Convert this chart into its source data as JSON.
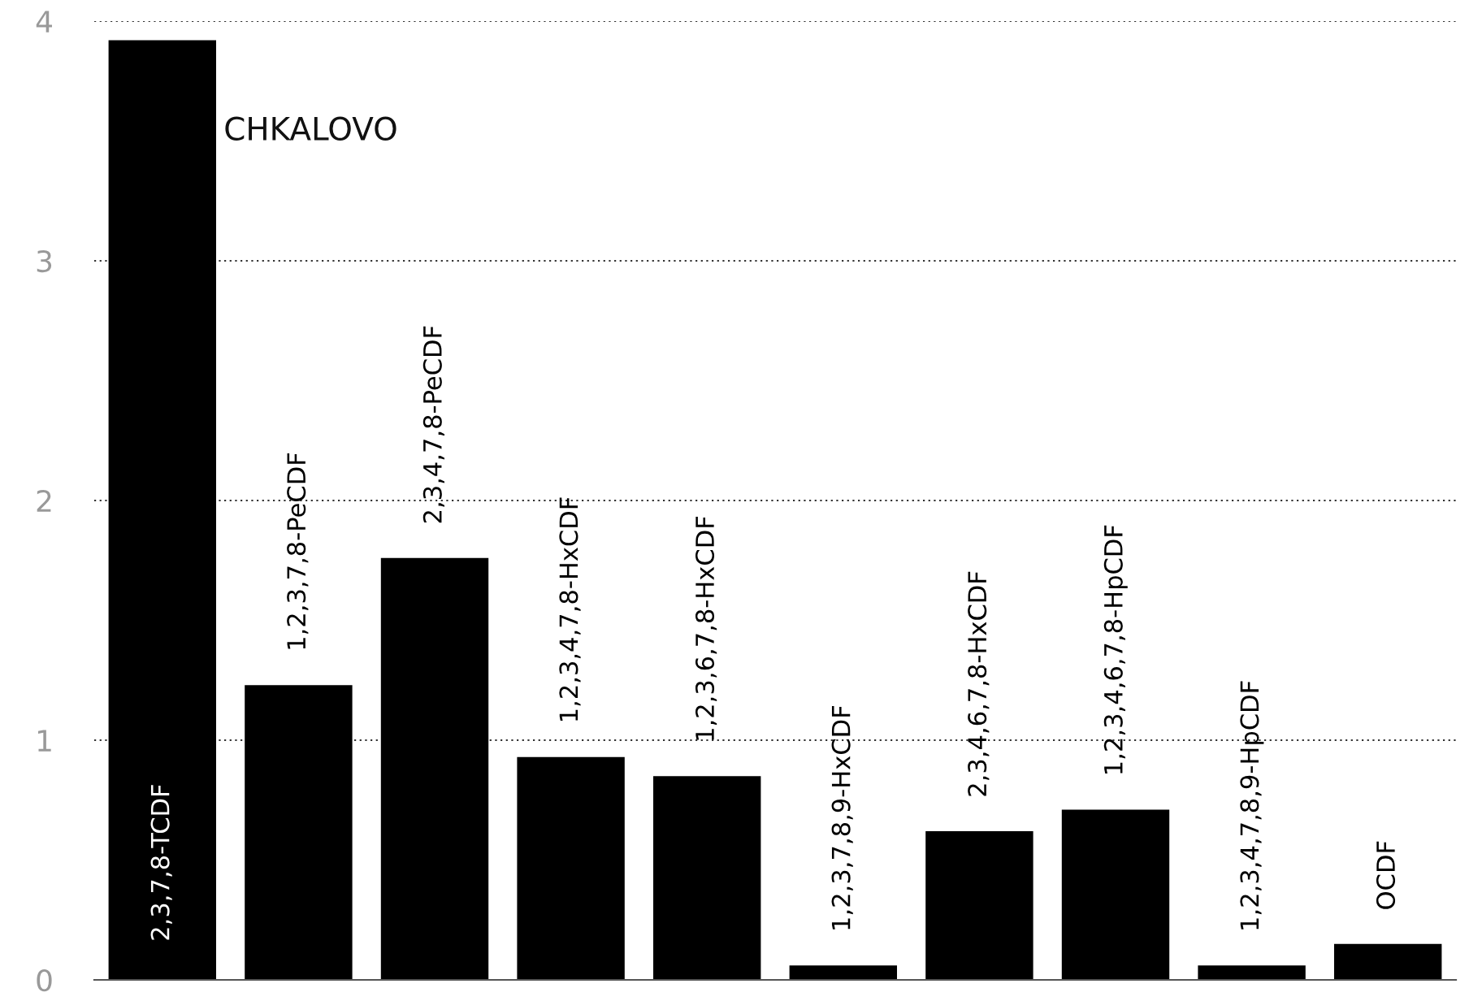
{
  "chart_data": {
    "type": "bar",
    "title": "CHKALOVO",
    "categories": [
      "2,3,7,8-TCDF",
      "1,2,3,7,8-PeCDF",
      "2,3,4,7,8-PeCDF",
      "1,2,3,4,7,8-HxCDF",
      "1,2,3,6,7,8-HxCDF",
      "1,2,3,7,8,9-HxCDF",
      "2,3,4,6,7,8-HxCDF",
      "1,2,3,4,6,7,8-HpCDF",
      "1,2,3,4,7,8,9-HpCDF",
      "OCDF"
    ],
    "values": [
      3.92,
      1.23,
      1.76,
      0.93,
      0.85,
      0.06,
      0.62,
      0.71,
      0.06,
      0.15
    ],
    "color": "#000000",
    "ylim": [
      0,
      4
    ],
    "yticks": [
      0,
      1,
      2,
      3,
      4
    ],
    "grid": "y"
  }
}
